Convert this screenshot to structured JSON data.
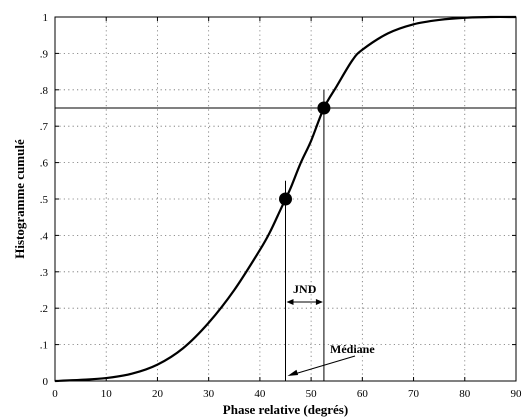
{
  "chart_data": {
    "type": "line",
    "title": "",
    "xlabel": "Phase relative (degrés)",
    "ylabel": "Histogramme cumulé",
    "xlim": [
      0,
      90
    ],
    "ylim": [
      0,
      1
    ],
    "grid": true,
    "x_ticks": [
      0,
      10,
      20,
      30,
      40,
      50,
      60,
      70,
      80,
      90
    ],
    "x_tick_labels": [
      "0",
      "10",
      "20",
      "30",
      "40",
      "50",
      "60",
      "70",
      "80",
      "90"
    ],
    "y_ticks": [
      0,
      0.1,
      0.2,
      0.3,
      0.4,
      0.5,
      0.6,
      0.7,
      0.8,
      0.9,
      1
    ],
    "y_tick_labels": [
      "0",
      ".1",
      ".2",
      ".3",
      ".4",
      ".5",
      ".6",
      ".7",
      ".8",
      ".9",
      "1"
    ],
    "series": [
      {
        "x": [
          0,
          5,
          10,
          15,
          20,
          25,
          30,
          35,
          40,
          42,
          44,
          45,
          46,
          48,
          50,
          52.5,
          55,
          58,
          60,
          65,
          70,
          75,
          80,
          85,
          90
        ],
        "y": [
          0,
          0.003,
          0.008,
          0.02,
          0.045,
          0.09,
          0.16,
          0.25,
          0.36,
          0.41,
          0.47,
          0.5,
          0.53,
          0.6,
          0.66,
          0.75,
          0.81,
          0.88,
          0.91,
          0.955,
          0.98,
          0.992,
          0.998,
          1,
          1
        ]
      }
    ],
    "markers": [
      {
        "x": 45,
        "y": 0.5
      },
      {
        "x": 52.5,
        "y": 0.75
      }
    ],
    "reference_lines": {
      "horizontal_y": 0.75,
      "vertical_x": [
        45,
        52.5
      ]
    },
    "annotations": [
      {
        "text": "JND",
        "between_x": [
          45,
          52.5
        ]
      },
      {
        "text": "Médiane",
        "points_to_x": 45
      }
    ]
  }
}
